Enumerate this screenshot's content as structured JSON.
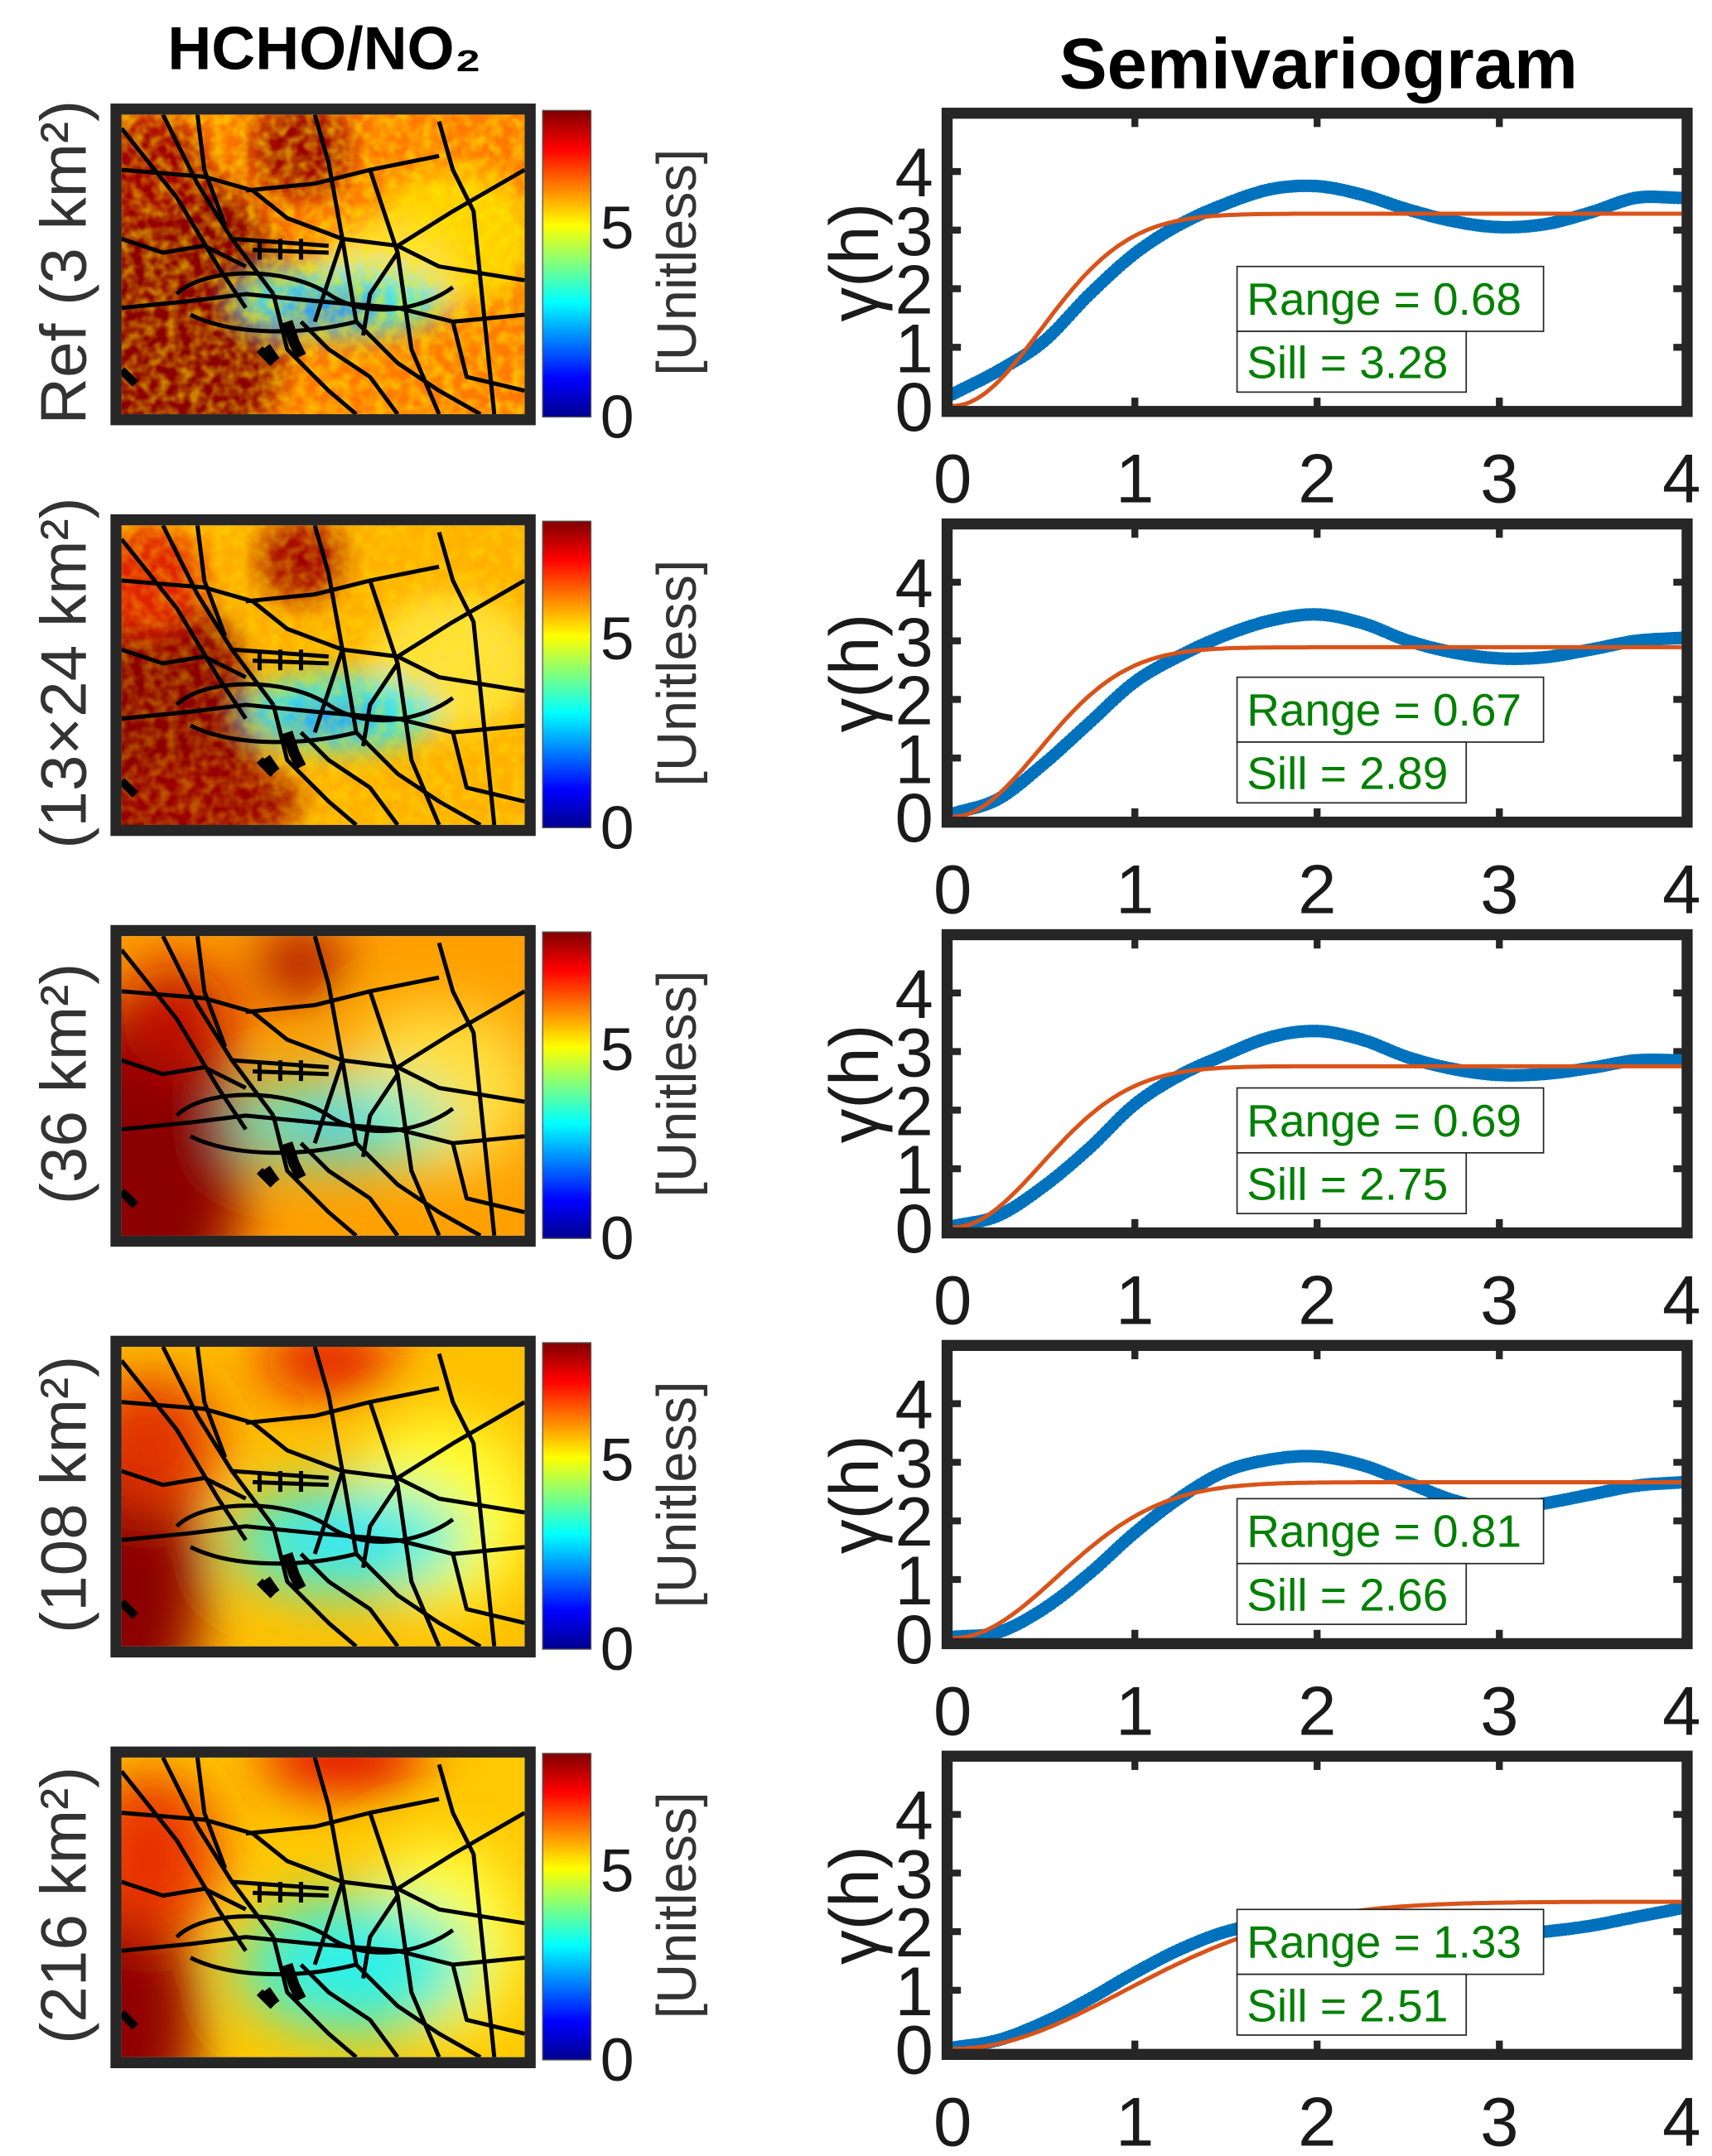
{
  "titles": {
    "left": "HCHO/NO₂",
    "right": "Semivariogram"
  },
  "colorbar": {
    "label": "[Unitless]",
    "ticks": [
      "0",
      "5"
    ],
    "tick_values": [
      0,
      5
    ],
    "clim": [
      0,
      8.1
    ],
    "colormap": "jet"
  },
  "colors": {
    "empirical": "#0072bd",
    "model": "#d95319",
    "annotation": "#008000",
    "axes": "#262626"
  },
  "rows": [
    {
      "label": "Ref (3 km²)"
    },
    {
      "label": "(13×24 km²)"
    },
    {
      "label": "(36 km²)"
    },
    {
      "label": "(108 km²)"
    },
    {
      "label": "(216 km²)"
    }
  ],
  "chart_data": [
    {
      "type": "scatter+line",
      "title": "Semivariogram",
      "ylabel": "γ(h)",
      "xlabel": "",
      "xlim": [
        0,
        4
      ],
      "ylim": [
        0,
        4.9
      ],
      "x_ticks": [
        "0",
        "1",
        "2",
        "3",
        "4"
      ],
      "y_ticks": [
        "0",
        "1",
        "2",
        "3",
        "4"
      ],
      "h": [
        0,
        0.25,
        0.5,
        0.75,
        1,
        1.25,
        1.5,
        1.75,
        2,
        2.25,
        2.5,
        2.75,
        3,
        3.25,
        3.5,
        3.75,
        4
      ],
      "empirical": [
        0.2,
        0.6,
        1.1,
        1.9,
        2.6,
        3.1,
        3.45,
        3.7,
        3.75,
        3.6,
        3.35,
        3.15,
        3.05,
        3.1,
        3.3,
        3.55,
        3.55
      ],
      "model": {
        "type": "gaussian",
        "range": 0.68,
        "sill": 3.28
      },
      "range_label": "Range = 0.68",
      "sill_label": "Sill = 3.28"
    },
    {
      "type": "scatter+line",
      "title": "",
      "ylabel": "γ(h)",
      "xlabel": "",
      "xlim": [
        0,
        4
      ],
      "ylim": [
        0,
        4.9
      ],
      "x_ticks": [
        "0",
        "1",
        "2",
        "3",
        "4"
      ],
      "y_ticks": [
        "0",
        "1",
        "2",
        "3",
        "4"
      ],
      "h": [
        0,
        0.25,
        0.5,
        0.75,
        1,
        1.25,
        1.5,
        1.75,
        2,
        2.25,
        2.5,
        2.75,
        3,
        3.25,
        3.5,
        3.75,
        4
      ],
      "empirical": [
        0.05,
        0.3,
        0.9,
        1.6,
        2.3,
        2.75,
        3.1,
        3.35,
        3.45,
        3.3,
        3.0,
        2.8,
        2.7,
        2.72,
        2.85,
        3.0,
        3.05
      ],
      "model": {
        "type": "gaussian",
        "range": 0.67,
        "sill": 2.89
      },
      "range_label": "Range = 0.67",
      "sill_label": "Sill = 2.89"
    },
    {
      "type": "scatter+line",
      "title": "",
      "ylabel": "γ(h)",
      "xlabel": "",
      "xlim": [
        0,
        4
      ],
      "ylim": [
        0,
        4.9
      ],
      "x_ticks": [
        "0",
        "1",
        "2",
        "3",
        "4"
      ],
      "y_ticks": [
        "0",
        "1",
        "2",
        "3",
        "4"
      ],
      "h": [
        0,
        0.25,
        0.5,
        0.75,
        1,
        1.25,
        1.5,
        1.75,
        2,
        2.25,
        2.5,
        2.75,
        3,
        3.25,
        3.5,
        3.75,
        4
      ],
      "empirical": [
        0.02,
        0.2,
        0.7,
        1.35,
        2.1,
        2.6,
        2.95,
        3.25,
        3.35,
        3.2,
        2.9,
        2.7,
        2.6,
        2.62,
        2.72,
        2.85,
        2.85
      ],
      "model": {
        "type": "gaussian",
        "range": 0.69,
        "sill": 2.75
      },
      "range_label": "Range = 0.69",
      "sill_label": "Sill = 2.75"
    },
    {
      "type": "scatter+line",
      "title": "",
      "ylabel": "γ(h)",
      "xlabel": "",
      "xlim": [
        0,
        4
      ],
      "ylim": [
        0,
        4.9
      ],
      "x_ticks": [
        "0",
        "1",
        "2",
        "3",
        "4"
      ],
      "y_ticks": [
        "0",
        "1",
        "2",
        "3",
        "4"
      ],
      "h": [
        0,
        0.25,
        0.5,
        0.75,
        1,
        1.25,
        1.5,
        1.75,
        2,
        2.25,
        2.5,
        2.75,
        3,
        3.25,
        3.5,
        3.75,
        4
      ],
      "empirical": [
        0.02,
        0.1,
        0.5,
        1.1,
        1.8,
        2.4,
        2.85,
        3.05,
        3.1,
        2.95,
        2.65,
        2.35,
        2.2,
        2.3,
        2.45,
        2.6,
        2.66
      ],
      "model": {
        "type": "gaussian",
        "range": 0.81,
        "sill": 2.66
      },
      "range_label": "Range = 0.81",
      "sill_label": "Sill = 2.66"
    },
    {
      "type": "scatter+line",
      "title": "",
      "ylabel": "γ(h)",
      "xlabel": "",
      "xlim": [
        0,
        4
      ],
      "ylim": [
        0,
        4.9
      ],
      "x_ticks": [
        "0",
        "1",
        "2",
        "3",
        "4"
      ],
      "y_ticks": [
        "0",
        "1",
        "2",
        "3",
        "4"
      ],
      "h": [
        0,
        0.25,
        0.5,
        0.75,
        1,
        1.25,
        1.5,
        1.75,
        2,
        2.25,
        2.5,
        2.75,
        3,
        3.25,
        3.5,
        3.75,
        4
      ],
      "empirical": [
        0.02,
        0.15,
        0.45,
        0.85,
        1.3,
        1.7,
        2.0,
        2.15,
        2.2,
        2.1,
        2.0,
        1.95,
        1.95,
        2.0,
        2.1,
        2.25,
        2.4
      ],
      "model": {
        "type": "gaussian",
        "range": 1.33,
        "sill": 2.51
      },
      "range_label": "Range = 1.33",
      "sill_label": "Sill = 2.51"
    }
  ]
}
